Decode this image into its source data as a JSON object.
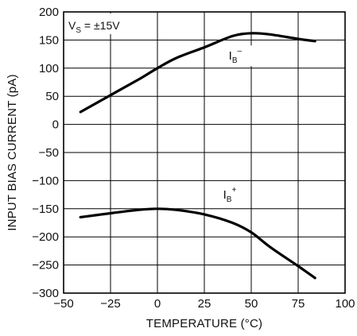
{
  "chart_data": {
    "type": "line",
    "xlabel": "TEMPERATURE (°C)",
    "ylabel": "INPUT BIAS CURRENT (pA)",
    "xlim": [
      -50,
      100
    ],
    "ylim": [
      -300,
      200
    ],
    "xticks": [
      -50,
      -25,
      0,
      25,
      50,
      75,
      100
    ],
    "yticks": [
      -300,
      -250,
      -200,
      -150,
      -100,
      -50,
      0,
      50,
      100,
      150,
      200
    ],
    "grid": true,
    "annotation": {
      "main": "V",
      "sub": "S",
      "rest": " = ±15V"
    },
    "series": [
      {
        "name": "IB−",
        "label": {
          "main": "I",
          "sub": "B",
          "sup": "–"
        },
        "x": [
          -41,
          -25,
          -10,
          0,
          10,
          25,
          40,
          50,
          60,
          75,
          84
        ],
        "y": [
          22,
          52,
          80,
          100,
          118,
          137,
          157,
          162,
          160,
          152,
          148
        ]
      },
      {
        "name": "IB+",
        "label": {
          "main": "I",
          "sub": "B",
          "sup": "+"
        },
        "x": [
          -41,
          -25,
          -10,
          0,
          10,
          25,
          40,
          50,
          60,
          75,
          84
        ],
        "y": [
          -165,
          -158,
          -152,
          -150,
          -152,
          -160,
          -175,
          -192,
          -218,
          -252,
          -273
        ]
      }
    ]
  }
}
